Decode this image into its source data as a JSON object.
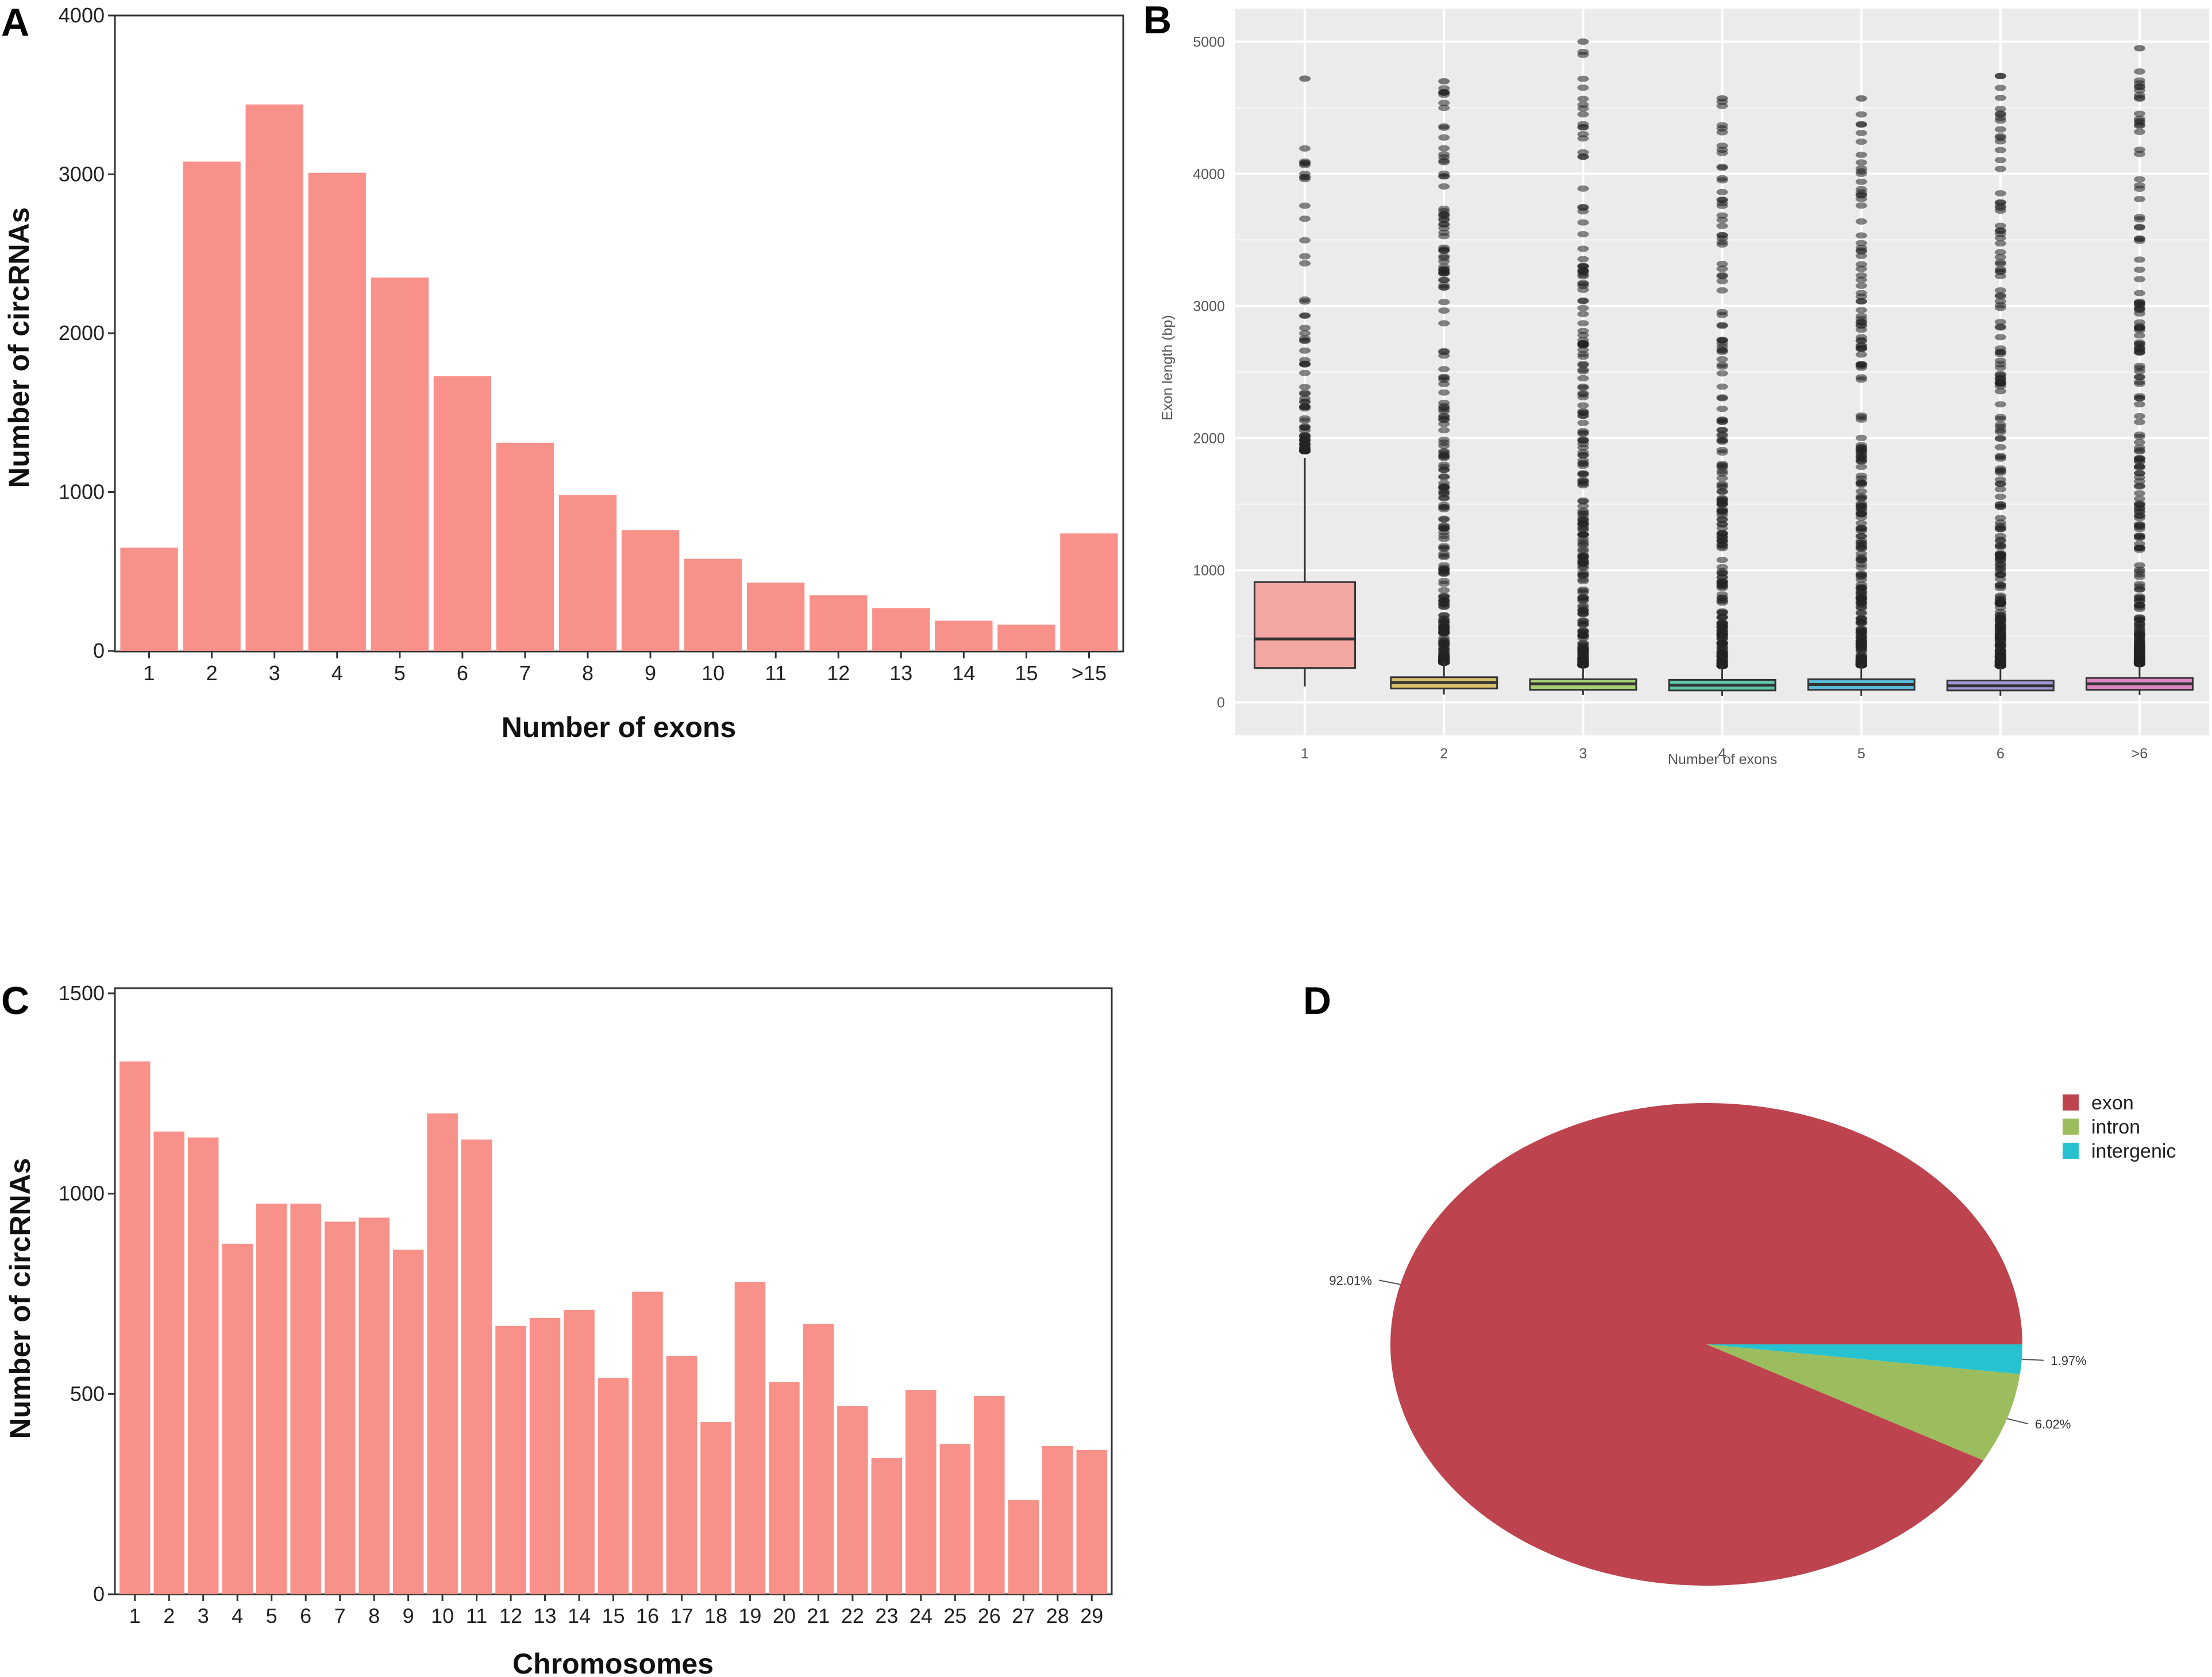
{
  "figure": {
    "panels": [
      "A",
      "B",
      "C",
      "D"
    ]
  },
  "chart_data": [
    {
      "id": "A",
      "type": "bar",
      "title": "",
      "xlabel": "Number of exons",
      "ylabel": "Number of circRNAs",
      "categories": [
        "1",
        "2",
        "3",
        "4",
        "5",
        "6",
        "7",
        "8",
        "9",
        "10",
        "11",
        "12",
        "13",
        "14",
        "15",
        ">15"
      ],
      "values": [
        650,
        3080,
        3440,
        3010,
        2350,
        1730,
        1310,
        980,
        760,
        580,
        430,
        350,
        270,
        190,
        165,
        740
      ],
      "ylim": [
        0,
        4000
      ],
      "yticks": [
        0,
        1000,
        2000,
        3000,
        4000
      ],
      "color": "#f8918a"
    },
    {
      "id": "B",
      "type": "box",
      "xlabel": "Number of exons",
      "ylabel": "Exon length (bp)",
      "categories": [
        "1",
        "2",
        "3",
        "4",
        "5",
        "6",
        ">6"
      ],
      "ylim": [
        -250,
        5250
      ],
      "yticks": [
        0,
        1000,
        2000,
        3000,
        4000,
        5000
      ],
      "boxes": [
        {
          "q1": 260,
          "median": 480,
          "q3": 910,
          "whisker_low": 120,
          "whisker_high": 1850,
          "outlier_start": 1900,
          "outlier_max": 4720,
          "fill": "#f4a6a3"
        },
        {
          "q1": 105,
          "median": 150,
          "q3": 190,
          "whisker_low": 60,
          "whisker_high": 300,
          "outlier_start": 300,
          "outlier_max": 4700,
          "fill": "#d8c06a"
        },
        {
          "q1": 95,
          "median": 140,
          "q3": 175,
          "whisker_low": 55,
          "whisker_high": 280,
          "outlier_start": 280,
          "outlier_max": 5000,
          "fill": "#a6cf72"
        },
        {
          "q1": 90,
          "median": 130,
          "q3": 170,
          "whisker_low": 50,
          "whisker_high": 275,
          "outlier_start": 275,
          "outlier_max": 4570,
          "fill": "#5cc6a8"
        },
        {
          "q1": 95,
          "median": 135,
          "q3": 175,
          "whisker_low": 50,
          "whisker_high": 280,
          "outlier_start": 280,
          "outlier_max": 4570,
          "fill": "#5ab8d8"
        },
        {
          "q1": 90,
          "median": 125,
          "q3": 165,
          "whisker_low": 50,
          "whisker_high": 275,
          "outlier_start": 275,
          "outlier_max": 4740,
          "fill": "#a39ad8"
        },
        {
          "q1": 95,
          "median": 140,
          "q3": 185,
          "whisker_low": 55,
          "whisker_high": 290,
          "outlier_start": 290,
          "outlier_max": 4950,
          "fill": "#de86c4"
        }
      ]
    },
    {
      "id": "C",
      "type": "bar",
      "xlabel": "Chromosomes",
      "ylabel": "Number of circRNAs",
      "categories": [
        "1",
        "2",
        "3",
        "4",
        "5",
        "6",
        "7",
        "8",
        "9",
        "10",
        "11",
        "12",
        "13",
        "14",
        "15",
        "16",
        "17",
        "18",
        "19",
        "20",
        "21",
        "22",
        "23",
        "24",
        "25",
        "26",
        "27",
        "28",
        "29"
      ],
      "values": [
        1330,
        1155,
        1140,
        875,
        975,
        975,
        930,
        940,
        860,
        1200,
        1135,
        670,
        690,
        710,
        540,
        755,
        595,
        430,
        780,
        530,
        675,
        470,
        340,
        510,
        375,
        495,
        235,
        370,
        360
      ],
      "ylim": [
        0,
        1500
      ],
      "yticks": [
        0,
        500,
        1000,
        1500
      ],
      "color": "#f8918a"
    },
    {
      "id": "D",
      "type": "pie",
      "slices": [
        {
          "label": "exon",
          "value": 92.01,
          "display": "92.01%",
          "color": "#bd444e"
        },
        {
          "label": "intron",
          "value": 6.02,
          "display": "6.02%",
          "color": "#9cbd5e"
        },
        {
          "label": "intergenic",
          "value": 1.97,
          "display": "1.97%",
          "color": "#27c2cf"
        }
      ],
      "legend": [
        "exon",
        "intron",
        "intergenic"
      ],
      "legend_position": "top-right"
    }
  ]
}
